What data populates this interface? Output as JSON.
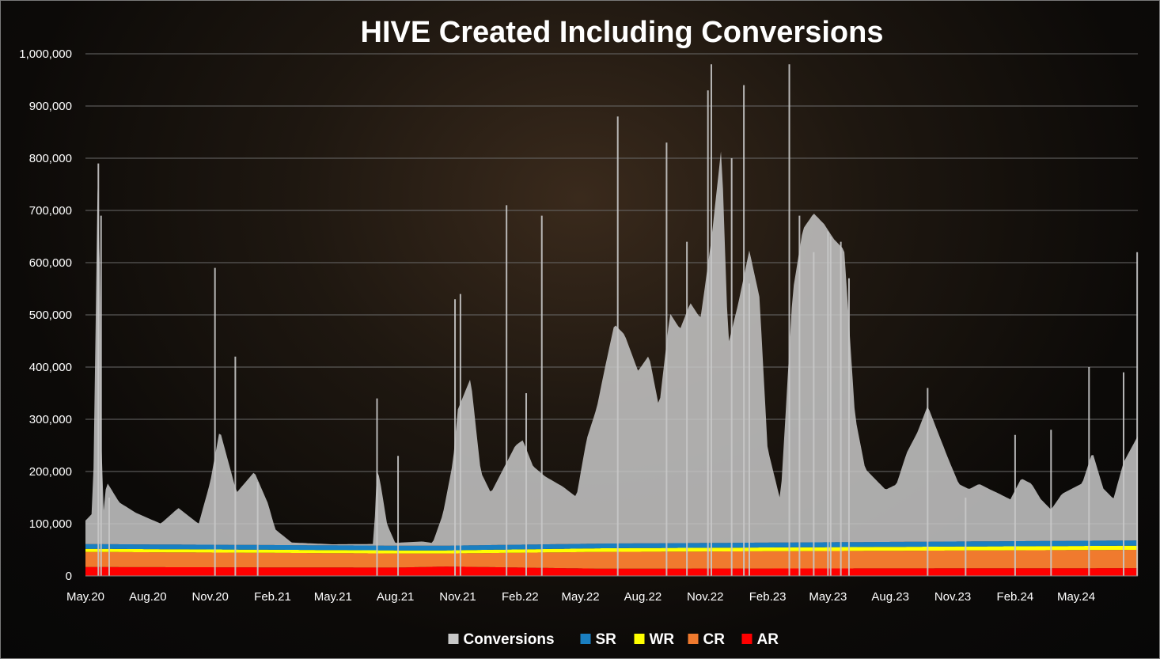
{
  "chart_data": {
    "type": "area",
    "title": "HIVE Created Including Conversions",
    "xlabel": "",
    "ylabel": "",
    "ylim": [
      0,
      1000000
    ],
    "yticks": [
      0,
      100000,
      200000,
      300000,
      400000,
      500000,
      600000,
      700000,
      800000,
      900000,
      1000000
    ],
    "ytick_labels": [
      "0",
      "100,000",
      "200,000",
      "300,000",
      "400,000",
      "500,000",
      "600,000",
      "700,000",
      "800,000",
      "900,000",
      "1,000,000"
    ],
    "x_start": "2020-05-01",
    "x_end": "2024-07-31",
    "xtick_labels": [
      "May.20",
      "Aug.20",
      "Nov.20",
      "Feb.21",
      "May.21",
      "Aug.21",
      "Nov.21",
      "Feb.22",
      "May.22",
      "Aug.22",
      "Nov.22",
      "Feb.23",
      "May.23",
      "Aug.23",
      "Nov.23",
      "Feb.24",
      "May.24"
    ],
    "xticks": [
      "2020-05-01",
      "2020-08-01",
      "2020-11-01",
      "2021-02-01",
      "2021-05-01",
      "2021-08-01",
      "2021-11-01",
      "2022-02-01",
      "2022-05-01",
      "2022-08-01",
      "2022-11-01",
      "2023-02-01",
      "2023-05-01",
      "2023-08-01",
      "2023-11-01",
      "2024-02-01",
      "2024-05-01"
    ],
    "grid": true,
    "legend_position": "bottom",
    "stacked": true,
    "series": [
      {
        "name": "AR",
        "color": "#ff0000",
        "dates": [
          "2020-05-01",
          "2021-08-01",
          "2021-10-15",
          "2022-06-01",
          "2024-07-31"
        ],
        "values": [
          17000,
          16000,
          18000,
          14000,
          15000
        ]
      },
      {
        "name": "CR",
        "color": "#f07a2e",
        "dates": [
          "2020-05-01",
          "2021-08-01",
          "2021-10-15",
          "2022-06-01",
          "2024-07-31"
        ],
        "values": [
          29000,
          27000,
          25000,
          32000,
          35000
        ]
      },
      {
        "name": "WR",
        "color": "#ffff00",
        "dates": [
          "2020-05-01",
          "2021-08-01",
          "2021-10-15",
          "2022-06-01",
          "2024-07-31"
        ],
        "values": [
          6000,
          6000,
          6000,
          7000,
          8000
        ]
      },
      {
        "name": "SR",
        "color": "#1a7fc1",
        "dates": [
          "2020-05-01",
          "2021-08-01",
          "2021-10-15",
          "2022-06-01",
          "2024-07-31"
        ],
        "values": [
          9000,
          9000,
          9000,
          9000,
          10000
        ]
      },
      {
        "name": "Conversions",
        "color": "#c8c8c8",
        "dates": [
          "2020-05-01",
          "2020-05-12",
          "2020-05-20",
          "2020-05-26",
          "2020-06-01",
          "2020-06-20",
          "2020-07-15",
          "2020-08-20",
          "2020-09-15",
          "2020-10-15",
          "2020-11-01",
          "2020-11-15",
          "2020-12-10",
          "2021-01-05",
          "2021-01-25",
          "2021-02-05",
          "2021-03-01",
          "2021-05-01",
          "2021-06-30",
          "2021-07-05",
          "2021-07-10",
          "2021-07-20",
          "2021-08-01",
          "2021-08-10",
          "2021-09-10",
          "2021-09-25",
          "2021-10-10",
          "2021-10-25",
          "2021-11-01",
          "2021-11-20",
          "2021-12-05",
          "2021-12-20",
          "2022-01-05",
          "2022-01-25",
          "2022-02-05",
          "2022-02-20",
          "2022-03-10",
          "2022-04-05",
          "2022-04-25",
          "2022-05-10",
          "2022-05-25",
          "2022-06-05",
          "2022-06-20",
          "2022-07-05",
          "2022-07-25",
          "2022-08-10",
          "2022-08-25",
          "2022-09-10",
          "2022-09-25",
          "2022-10-10",
          "2022-10-25",
          "2022-11-10",
          "2022-11-25",
          "2022-12-05",
          "2022-12-20",
          "2023-01-05",
          "2023-01-20",
          "2023-02-01",
          "2023-02-20",
          "2023-03-10",
          "2023-03-25",
          "2023-04-10",
          "2023-04-25",
          "2023-05-10",
          "2023-05-25",
          "2023-06-10",
          "2023-06-25",
          "2023-07-10",
          "2023-07-25",
          "2023-08-10",
          "2023-08-25",
          "2023-09-10",
          "2023-09-25",
          "2023-10-10",
          "2023-10-25",
          "2023-11-10",
          "2023-11-25",
          "2023-12-10",
          "2023-12-25",
          "2024-01-10",
          "2024-01-25",
          "2024-02-10",
          "2024-02-25",
          "2024-03-10",
          "2024-03-25",
          "2024-04-10",
          "2024-04-25",
          "2024-05-10",
          "2024-05-25",
          "2024-06-10",
          "2024-06-25",
          "2024-07-10",
          "2024-07-31"
        ],
        "values": [
          45000,
          60000,
          780000,
          40000,
          120000,
          80000,
          60000,
          40000,
          70000,
          40000,
          120000,
          220000,
          100000,
          140000,
          80000,
          30000,
          5000,
          2000,
          3000,
          150000,
          120000,
          40000,
          5000,
          6000,
          8000,
          5000,
          60000,
          160000,
          260000,
          320000,
          140000,
          100000,
          140000,
          190000,
          200000,
          150000,
          130000,
          110000,
          90000,
          200000,
          260000,
          330000,
          420000,
          400000,
          330000,
          360000,
          260000,
          440000,
          410000,
          460000,
          430000,
          580000,
          760000,
          380000,
          460000,
          560000,
          470000,
          180000,
          80000,
          480000,
          600000,
          630000,
          610000,
          580000,
          560000,
          240000,
          140000,
          120000,
          100000,
          110000,
          170000,
          210000,
          260000,
          210000,
          160000,
          110000,
          100000,
          110000,
          100000,
          90000,
          80000,
          120000,
          110000,
          80000,
          60000,
          90000,
          100000,
          110000,
          170000,
          100000,
          80000,
          150000,
          200000
        ]
      },
      {
        "name": "Spikes",
        "color": "#c8c8c8",
        "dates": [
          "2020-05-20",
          "2020-05-24",
          "2020-06-05",
          "2020-11-08",
          "2020-12-08",
          "2021-01-10",
          "2021-07-05",
          "2021-08-05",
          "2021-10-28",
          "2021-11-05",
          "2022-01-12",
          "2022-02-10",
          "2022-03-05",
          "2022-06-25",
          "2022-09-05",
          "2022-10-05",
          "2022-11-05",
          "2022-11-10",
          "2022-12-10",
          "2022-12-28",
          "2023-01-05",
          "2023-03-05",
          "2023-03-20",
          "2023-04-10",
          "2023-05-01",
          "2023-05-05",
          "2023-05-20",
          "2023-06-01",
          "2023-09-25",
          "2023-11-20",
          "2024-02-01",
          "2024-03-25",
          "2024-05-20",
          "2024-07-10",
          "2024-07-30"
        ],
        "values": [
          790000,
          690000,
          150000,
          590000,
          420000,
          180000,
          340000,
          230000,
          530000,
          540000,
          710000,
          350000,
          690000,
          880000,
          830000,
          640000,
          930000,
          980000,
          800000,
          940000,
          560000,
          980000,
          690000,
          620000,
          660000,
          650000,
          640000,
          570000,
          360000,
          150000,
          270000,
          280000,
          400000,
          390000,
          620000
        ]
      }
    ]
  },
  "legend": {
    "items": [
      {
        "label": "Conversions",
        "color": "#c8c8c8"
      },
      {
        "label": "SR",
        "color": "#1a7fc1"
      },
      {
        "label": "WR",
        "color": "#ffff00"
      },
      {
        "label": "CR",
        "color": "#f07a2e"
      },
      {
        "label": "AR",
        "color": "#ff0000"
      }
    ]
  }
}
